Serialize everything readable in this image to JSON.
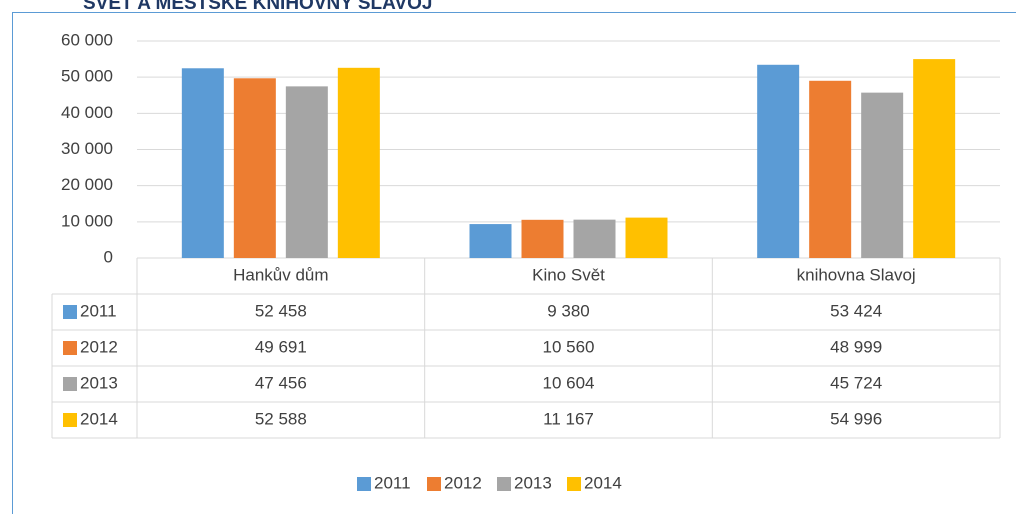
{
  "chart_data": {
    "type": "bar",
    "title": "SVĚT A MĚSTSKÉ KNIHOVNY SLAVOJ",
    "categories": [
      "Hankův dům",
      "Kino Svět",
      "knihovna Slavoj"
    ],
    "series": [
      {
        "name": "2011",
        "color": "#5b9bd5",
        "values": [
          52458,
          9380,
          53424
        ],
        "value_labels": [
          "52 458",
          "9 380",
          "53 424"
        ]
      },
      {
        "name": "2012",
        "color": "#ed7d31",
        "values": [
          49691,
          10560,
          48999
        ],
        "value_labels": [
          "49 691",
          "10 560",
          "48 999"
        ]
      },
      {
        "name": "2013",
        "color": "#a5a5a5",
        "values": [
          47456,
          10604,
          45724
        ],
        "value_labels": [
          "47 456",
          "10 604",
          "45 724"
        ]
      },
      {
        "name": "2014",
        "color": "#ffc000",
        "values": [
          52588,
          11167,
          54996
        ],
        "value_labels": [
          "52 588",
          "11 167",
          "54 996"
        ]
      }
    ],
    "ylim": [
      0,
      60000
    ],
    "yticks": [
      0,
      {
        "value": 10000,
        "label": "10 000"
      },
      {
        "value": 20000,
        "label": "20 000"
      },
      {
        "value": 30000,
        "label": "30 000"
      },
      {
        "value": 40000,
        "label": "40 000"
      },
      {
        "value": 50000,
        "label": "50 000"
      },
      {
        "value": 60000,
        "label": "60 000"
      }
    ],
    "grid": true
  }
}
